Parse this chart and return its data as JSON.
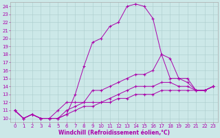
{
  "xlabel": "Windchill (Refroidissement éolien,°C)",
  "bg_color": "#cce8e8",
  "line_color": "#aa00aa",
  "marker": "+",
  "xlim": [
    -0.5,
    23.5
  ],
  "ylim": [
    9.5,
    24.5
  ],
  "xticks": [
    0,
    1,
    2,
    3,
    4,
    5,
    6,
    7,
    8,
    9,
    10,
    11,
    12,
    13,
    14,
    15,
    16,
    17,
    18,
    19,
    20,
    21,
    22,
    23
  ],
  "yticks": [
    10,
    11,
    12,
    13,
    14,
    15,
    16,
    17,
    18,
    19,
    20,
    21,
    22,
    23,
    24
  ],
  "line1_x": [
    0,
    1,
    2,
    3,
    4,
    5,
    6,
    7,
    8,
    9,
    10,
    11,
    12,
    13,
    14,
    15,
    16,
    17,
    18,
    19,
    20,
    21,
    22,
    23
  ],
  "line1_y": [
    11,
    10,
    10.5,
    10,
    10,
    10,
    10.5,
    13,
    16.5,
    19.5,
    20,
    21.5,
    22,
    24,
    24.3,
    24,
    22.5,
    18,
    17.5,
    15,
    15,
    13.5,
    13.5,
    14
  ],
  "line2_x": [
    0,
    1,
    2,
    3,
    4,
    5,
    6,
    7,
    8,
    9,
    10,
    11,
    12,
    13,
    14,
    15,
    16,
    17,
    18,
    19,
    20,
    21,
    22,
    23
  ],
  "line2_y": [
    11,
    10,
    10.5,
    10,
    10,
    11,
    12,
    12,
    12,
    13.5,
    13.5,
    14,
    14.5,
    15,
    15.5,
    15.5,
    16,
    18,
    15,
    15,
    14.5,
    13.5,
    13.5,
    14
  ],
  "line3_x": [
    0,
    1,
    2,
    3,
    4,
    5,
    6,
    7,
    8,
    9,
    10,
    11,
    12,
    13,
    14,
    15,
    16,
    17,
    18,
    19,
    20,
    21,
    22,
    23
  ],
  "line3_y": [
    11,
    10,
    10.5,
    10,
    10,
    10,
    11,
    11.5,
    12,
    12,
    12,
    12.5,
    13,
    13.5,
    14,
    14,
    14,
    14.5,
    14.5,
    14,
    14,
    13.5,
    13.5,
    14
  ],
  "line4_x": [
    0,
    1,
    2,
    3,
    4,
    5,
    6,
    7,
    8,
    9,
    10,
    11,
    12,
    13,
    14,
    15,
    16,
    17,
    18,
    19,
    20,
    21,
    22,
    23
  ],
  "line4_y": [
    11,
    10,
    10.5,
    10,
    10,
    10,
    10.5,
    11,
    11.5,
    11.5,
    12,
    12,
    12.5,
    12.5,
    13,
    13,
    13,
    13.5,
    13.5,
    13.5,
    13.5,
    13.5,
    13.5,
    14
  ],
  "tick_fontsize": 5,
  "xlabel_fontsize": 5.5
}
